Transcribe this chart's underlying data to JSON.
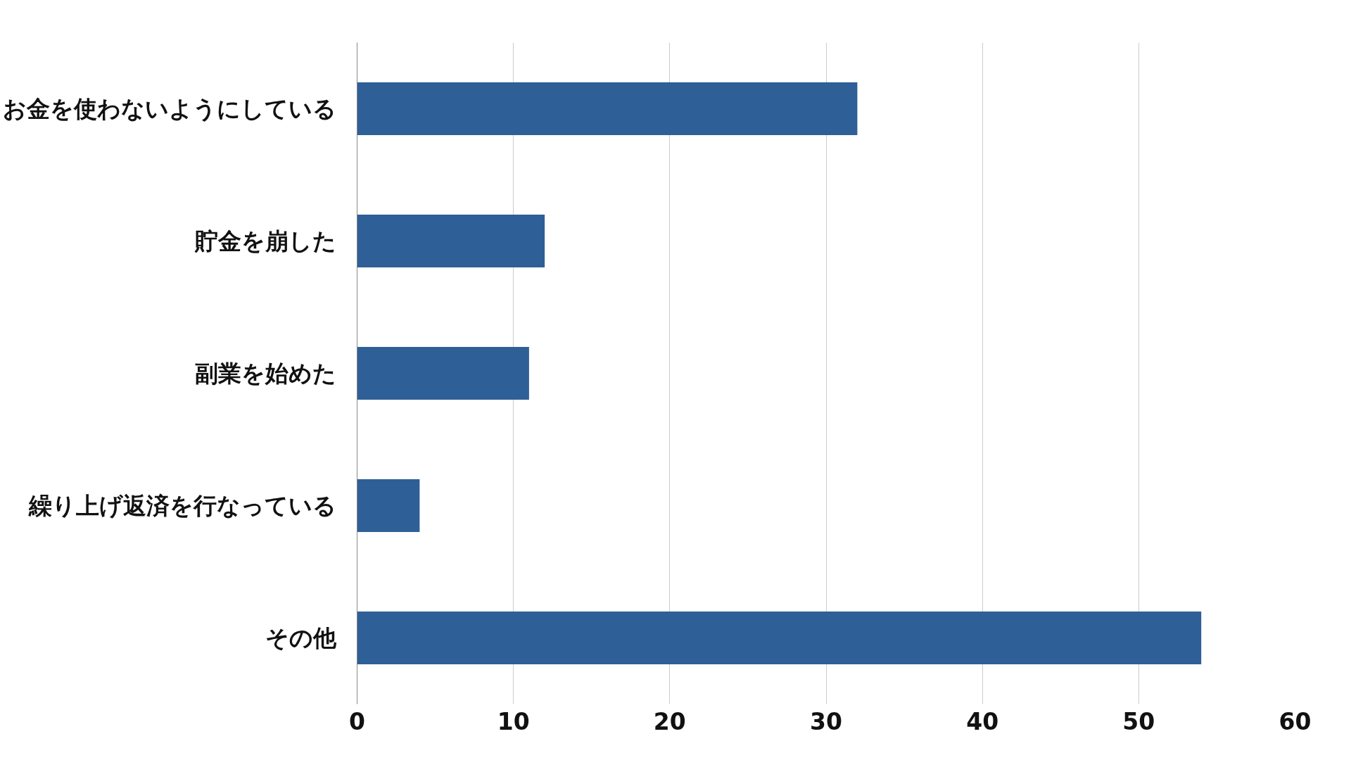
{
  "chart_data": {
    "type": "bar",
    "orientation": "horizontal",
    "categories": [
      "お金を使わないようにしている",
      "貯金を崩した",
      "副業を始めた",
      "繰り上げ返済を行なっている",
      "その他"
    ],
    "values": [
      32,
      12,
      11,
      4,
      54
    ],
    "color": "#2e5f96",
    "xlim": [
      0,
      60
    ],
    "xticks": [
      0,
      10,
      20,
      30,
      40,
      50,
      60
    ],
    "grid": "x"
  }
}
